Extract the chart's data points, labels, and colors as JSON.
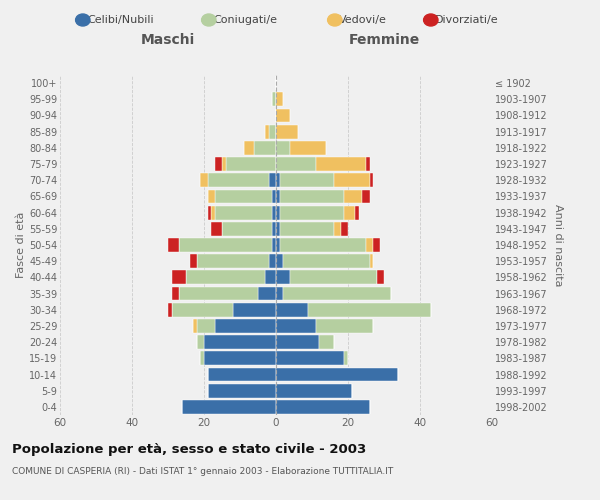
{
  "age_groups": [
    "0-4",
    "5-9",
    "10-14",
    "15-19",
    "20-24",
    "25-29",
    "30-34",
    "35-39",
    "40-44",
    "45-49",
    "50-54",
    "55-59",
    "60-64",
    "65-69",
    "70-74",
    "75-79",
    "80-84",
    "85-89",
    "90-94",
    "95-99",
    "100+"
  ],
  "birth_years": [
    "1998-2002",
    "1993-1997",
    "1988-1992",
    "1983-1987",
    "1978-1982",
    "1973-1977",
    "1968-1972",
    "1963-1967",
    "1958-1962",
    "1953-1957",
    "1948-1952",
    "1943-1947",
    "1938-1942",
    "1933-1937",
    "1928-1932",
    "1923-1927",
    "1918-1922",
    "1913-1917",
    "1908-1912",
    "1903-1907",
    "≤ 1902"
  ],
  "male": {
    "celibi": [
      26,
      19,
      19,
      20,
      20,
      17,
      12,
      5,
      3,
      2,
      1,
      1,
      1,
      1,
      2,
      0,
      0,
      0,
      0,
      0,
      0
    ],
    "coniugati": [
      0,
      0,
      0,
      1,
      2,
      5,
      17,
      22,
      22,
      20,
      26,
      14,
      16,
      16,
      17,
      14,
      6,
      2,
      0,
      1,
      0
    ],
    "vedovi": [
      0,
      0,
      0,
      0,
      0,
      1,
      0,
      0,
      0,
      0,
      0,
      0,
      1,
      2,
      2,
      1,
      3,
      1,
      0,
      0,
      0
    ],
    "divorziati": [
      0,
      0,
      0,
      0,
      0,
      0,
      1,
      2,
      4,
      2,
      3,
      3,
      1,
      0,
      0,
      2,
      0,
      0,
      0,
      0,
      0
    ]
  },
  "female": {
    "nubili": [
      26,
      21,
      34,
      19,
      12,
      11,
      9,
      2,
      4,
      2,
      1,
      1,
      1,
      1,
      1,
      0,
      0,
      0,
      0,
      0,
      0
    ],
    "coniugate": [
      0,
      0,
      0,
      1,
      4,
      16,
      34,
      30,
      24,
      24,
      24,
      15,
      18,
      18,
      15,
      11,
      4,
      0,
      0,
      0,
      0
    ],
    "vedove": [
      0,
      0,
      0,
      0,
      0,
      0,
      0,
      0,
      0,
      1,
      2,
      2,
      3,
      5,
      10,
      14,
      10,
      6,
      4,
      2,
      0
    ],
    "divorziate": [
      0,
      0,
      0,
      0,
      0,
      0,
      0,
      0,
      2,
      0,
      2,
      2,
      1,
      2,
      1,
      1,
      0,
      0,
      0,
      0,
      0
    ]
  },
  "colors": {
    "celibi": "#3a6fa8",
    "coniugati": "#b5cfa0",
    "vedovi": "#f0c060",
    "divorziati": "#cc2222"
  },
  "xlim": 60,
  "title": "Popolazione per età, sesso e stato civile - 2003",
  "subtitle": "COMUNE DI CASPERIA (RI) - Dati ISTAT 1° gennaio 2003 - Elaborazione TUTTITALIA.IT",
  "ylabel": "Fasce di età",
  "ylabel_right": "Anni di nascita",
  "xlabel_left": "Maschi",
  "xlabel_right": "Femmine",
  "legend_labels": [
    "Celibi/Nubili",
    "Coniugati/e",
    "Vedovi/e",
    "Divorziati/e"
  ],
  "bg_color": "#f0f0f0",
  "bar_height": 0.85
}
